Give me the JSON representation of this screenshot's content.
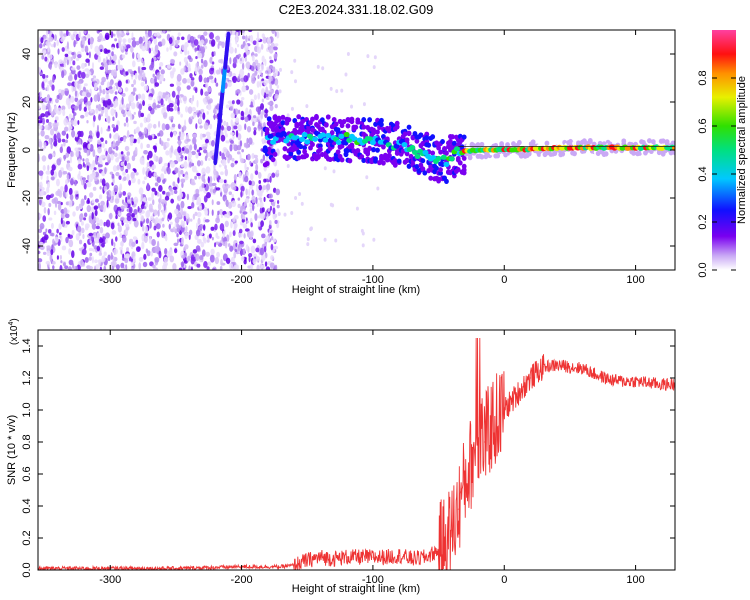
{
  "figure_title": "C2E3.2024.331.18.02.G09",
  "chart_data": [
    {
      "type": "heatmap",
      "title": "",
      "xlabel": "Height of straight line (km)",
      "ylabel": "Frequency (Hz)",
      "xlim": [
        -355,
        130
      ],
      "ylim": [
        -50,
        50
      ],
      "xticks": [
        -300,
        -200,
        -100,
        0,
        100
      ],
      "xtick_labels": [
        "-300",
        "-200",
        "-100",
        "0",
        "100"
      ],
      "yticks": [
        -40,
        -20,
        0,
        20,
        40
      ],
      "ytick_labels": [
        "-40",
        "-20",
        "0",
        "20",
        "40"
      ],
      "colorbar": {
        "label": "Normalized spectral amplitude",
        "range": [
          0,
          1
        ],
        "ticks": [
          0.0,
          0.2,
          0.4,
          0.6,
          0.8
        ],
        "tick_labels": [
          "0.0",
          "0.2",
          "0.4",
          "0.6",
          "0.8"
        ],
        "colormap": "rainbow (white→purple→blue→cyan→green→yellow→red→magenta)"
      },
      "features": [
        {
          "name": "noise region",
          "x_range": [
            -355,
            -180
          ],
          "description": "broadband low amplitude noise"
        },
        {
          "name": "tilted line",
          "points": [
            [
              -220,
              -5
            ],
            [
              -210,
              48
            ]
          ]
        },
        {
          "name": "carrier track",
          "points": [
            [
              -180,
              5
            ],
            [
              -140,
              5
            ],
            [
              -100,
              4
            ],
            [
              -80,
              2
            ],
            [
              -60,
              -2
            ],
            [
              -45,
              -5
            ],
            [
              -35,
              -1
            ],
            [
              -20,
              0
            ],
            [
              0,
              0
            ],
            [
              50,
              1
            ],
            [
              100,
              1
            ],
            [
              130,
              1
            ]
          ]
        }
      ]
    },
    {
      "type": "line",
      "title": "",
      "xlabel": "Height of straight line (km)",
      "ylabel": "SNR (10 * v/v)",
      "y_multiplier_label": "(x10",
      "y_multiplier_exp": "4",
      "xlim": [
        -355,
        130
      ],
      "ylim": [
        0,
        1.5
      ],
      "xticks": [
        -300,
        -200,
        -100,
        0,
        100
      ],
      "xtick_labels": [
        "-300",
        "-200",
        "-100",
        "0",
        "100"
      ],
      "yticks": [
        0.0,
        0.2,
        0.4,
        0.6,
        0.8,
        1.0,
        1.2,
        1.4
      ],
      "ytick_labels": [
        "0.0",
        "0.2",
        "0.4",
        "0.6",
        "0.8",
        "1.0",
        "1.2",
        "1.4"
      ],
      "series": [
        {
          "name": "SNR",
          "color": "#ee3333",
          "x": [
            -355,
            -300,
            -250,
            -200,
            -170,
            -160,
            -150,
            -140,
            -130,
            -120,
            -110,
            -100,
            -90,
            -80,
            -70,
            -60,
            -50,
            -45,
            -40,
            -35,
            -30,
            -25,
            -22,
            -20,
            -18,
            -15,
            -10,
            0,
            10,
            20,
            30,
            40,
            50,
            60,
            70,
            80,
            90,
            100,
            110,
            120,
            130
          ],
          "y": [
            0.01,
            0.01,
            0.01,
            0.02,
            0.02,
            0.03,
            0.06,
            0.08,
            0.07,
            0.08,
            0.08,
            0.08,
            0.08,
            0.09,
            0.07,
            0.08,
            0.12,
            0.18,
            0.25,
            0.38,
            0.55,
            0.68,
            0.75,
            0.8,
            0.85,
            0.8,
            0.9,
            1.0,
            1.1,
            1.2,
            1.27,
            1.28,
            1.27,
            1.26,
            1.22,
            1.19,
            1.18,
            1.18,
            1.17,
            1.16,
            1.16
          ]
        }
      ]
    }
  ]
}
